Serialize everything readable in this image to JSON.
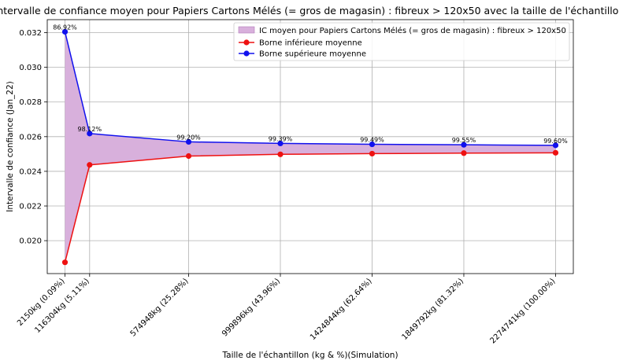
{
  "chart_data": {
    "type": "line",
    "title": "Intervalle de confiance moyen pour Papiers Cartons Mélés (= gros de magasin) : fibreux > 120x50 avec la taille de l'échantillon",
    "xlabel": "Taille de l'échantillon (kg & %)(Simulation)",
    "ylabel": "Intervalle de confiance (Jan_22)",
    "x": [
      2150,
      116304,
      574948,
      999896,
      1424844,
      1849792,
      2274741
    ],
    "xticklabels": [
      "2150kg (0.09%)",
      "116304kg (5.11%)",
      "574948kg (25.28%)",
      "999896kg (43.96%)",
      "1424844kg (62.64%)",
      "1849792kg (81.32%)",
      "2274741kg (100.00%)"
    ],
    "xlim": [
      -80000,
      2357000
    ],
    "ylim": [
      0.0181,
      0.03275
    ],
    "yticks": [
      0.02,
      0.022,
      0.024,
      0.026,
      0.028,
      0.03,
      0.032
    ],
    "yticklabels": [
      "0.020",
      "0.022",
      "0.024",
      "0.026",
      "0.028",
      "0.030",
      "0.032"
    ],
    "grid": true,
    "legend_position": "top-right",
    "fill": {
      "name": "IC moyen pour Papiers Cartons Mélés (= gros de magasin) : fibreux > 120x50",
      "color": "#d8b0dc"
    },
    "series": [
      {
        "name": "Borne inférieure moyenne",
        "color": "#ee1111",
        "values": [
          0.01875,
          0.02437,
          0.02488,
          0.02498,
          0.02502,
          0.02505,
          0.02507
        ]
      },
      {
        "name": "Borne supérieure moyenne",
        "color": "#1111ee",
        "values": [
          0.03205,
          0.02618,
          0.0257,
          0.02561,
          0.02556,
          0.02553,
          0.0255
        ]
      }
    ],
    "annotations": [
      "86.92%",
      "98.12%",
      "99.20%",
      "99.39%",
      "99.49%",
      "99.55%",
      "99.60%"
    ]
  }
}
